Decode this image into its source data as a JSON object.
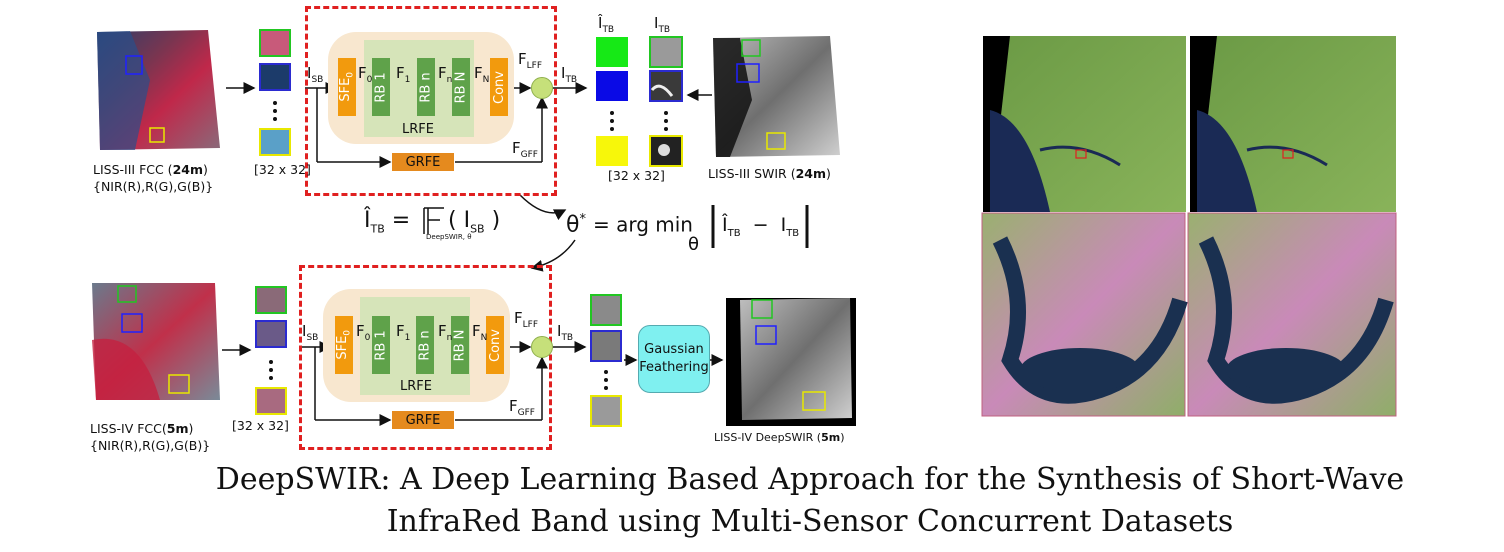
{
  "title": {
    "line1": "DeepSWIR: A Deep Learning Based Approach for the Synthesis of Short-Wave",
    "line2": "InfraRed Band using Multi-Sensor Concurrent Datasets"
  },
  "top": {
    "input_caption_prefix": "LISS-III FCC (",
    "input_caption_bold": "24m",
    "input_caption_suffix": ")",
    "input_bands": "{NIR(R),R(G),G(B)}",
    "patch_size": "[32 x 32]",
    "target_patch_size": "[32 x 32]",
    "swir_caption_prefix": "LISS-III SWIR (",
    "swir_caption_bold": "24m",
    "swir_caption_suffix": ")"
  },
  "bottom": {
    "input_caption_prefix": "LISS-IV FCC(",
    "input_caption_bold": "5m",
    "input_caption_suffix": ")",
    "input_bands": "{NIR(R),R(G),G(B)}",
    "patch_size": "[32 x 32]",
    "gaussian_line1": "Gaussian",
    "gaussian_line2": "Feathering",
    "output_caption_prefix": "LISS-IV DeepSWIR (",
    "output_caption_bold": "5m",
    "output_caption_suffix": ")"
  },
  "network": {
    "sfe": "SFE",
    "sfe_sub": "0",
    "rb1": "RB 1",
    "rbn": "RB n",
    "rbN": "RB N",
    "conv": "Conv",
    "lrfe": "LRFE",
    "grfe": "GRFE",
    "i_sb": "I",
    "i_sb_sub": "SB",
    "f0": "F",
    "f0_sub": "0",
    "f1": "F",
    "f1_sub": "1",
    "fn": "F",
    "fn_sub": "n",
    "fN": "F",
    "fN_sub": "N",
    "flff": "F",
    "flff_sub": "LFF",
    "fgff": "F",
    "fgff_sub": "GFF",
    "i_tb": "I",
    "i_tb_sub": "TB"
  },
  "equations": {
    "eq1_lhs": "Î",
    "eq1_lhs_sub": "TB",
    "eq1_eq": "=",
    "eq1_fn_sub": "DeepSWIR, θ",
    "eq1_arg": "( I",
    "eq1_arg_sub": "SB",
    "eq1_close": ")",
    "eq2_theta": "θ",
    "eq2_star": "*",
    "eq2_body": "= arg min",
    "eq2_theta_sub": "θ",
    "eq2_a": "Î",
    "eq2_a_sub": "TB",
    "eq2_minus": "−",
    "eq2_b": "I",
    "eq2_b_sub": "TB"
  },
  "target_headers": {
    "pred": "Î",
    "pred_sub": "TB",
    "gt": "I",
    "gt_sub": "TB"
  },
  "colors": {
    "dashed_box": "#e02020",
    "green_patch": "#16e916",
    "blue_patch": "#0a0ae6",
    "yellow_patch": "#f7f70a",
    "sfe_conv": "#f29a0d",
    "rb_blocks": "#5fa24a",
    "gaussian": "#7ff0f0"
  }
}
